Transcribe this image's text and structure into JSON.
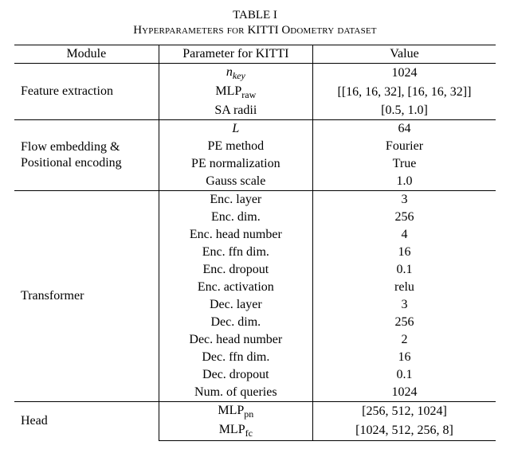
{
  "caption": {
    "line1": "TABLE I",
    "line2_pre": "H",
    "line2_sc1": "yperparameters for",
    "line2_mid": " KITTI O",
    "line2_sc2": "dometry dataset"
  },
  "header": {
    "module": "Module",
    "param": "Parameter for KITTI",
    "value": "Value"
  },
  "sections": [
    {
      "module": "Feature extraction",
      "rows": [
        {
          "param_html": "<span class='ital'>n<sub>key</sub></span>",
          "value": "1024"
        },
        {
          "param_html": "MLP<sub>raw</sub>",
          "value": "[[16, 16, 32], [16, 16, 32]]"
        },
        {
          "param_html": "SA radii",
          "value": "[0.5, 1.0]"
        }
      ]
    },
    {
      "module": "Flow embedding &<br>Positional encoding",
      "rows": [
        {
          "param_html": "<span class='ital'>L</span>",
          "value": "64"
        },
        {
          "param_html": "PE method",
          "value": "Fourier"
        },
        {
          "param_html": "PE normalization",
          "value": "True"
        },
        {
          "param_html": "Gauss scale",
          "value": "1.0"
        }
      ]
    },
    {
      "module": "Transformer",
      "rows": [
        {
          "param_html": "Enc. layer",
          "value": "3"
        },
        {
          "param_html": "Enc. dim.",
          "value": "256"
        },
        {
          "param_html": "Enc. head number",
          "value": "4"
        },
        {
          "param_html": "Enc. ffn dim.",
          "value": "16"
        },
        {
          "param_html": "Enc. dropout",
          "value": "0.1"
        },
        {
          "param_html": "Enc. activation",
          "value": "relu"
        },
        {
          "param_html": "Dec. layer",
          "value": "3"
        },
        {
          "param_html": "Dec. dim.",
          "value": "256"
        },
        {
          "param_html": "Dec. head number",
          "value": "2"
        },
        {
          "param_html": "Dec. ffn dim.",
          "value": "16"
        },
        {
          "param_html": "Dec. dropout",
          "value": "0.1"
        },
        {
          "param_html": "Num. of queries",
          "value": "1024"
        }
      ]
    },
    {
      "module": "Head",
      "rows": [
        {
          "param_html": "MLP<sub>pn</sub>",
          "value": "[256, 512, 1024]"
        },
        {
          "param_html": "MLP<sub>fc</sub>",
          "value": "[1024, 512, 256, 8]"
        }
      ]
    }
  ]
}
